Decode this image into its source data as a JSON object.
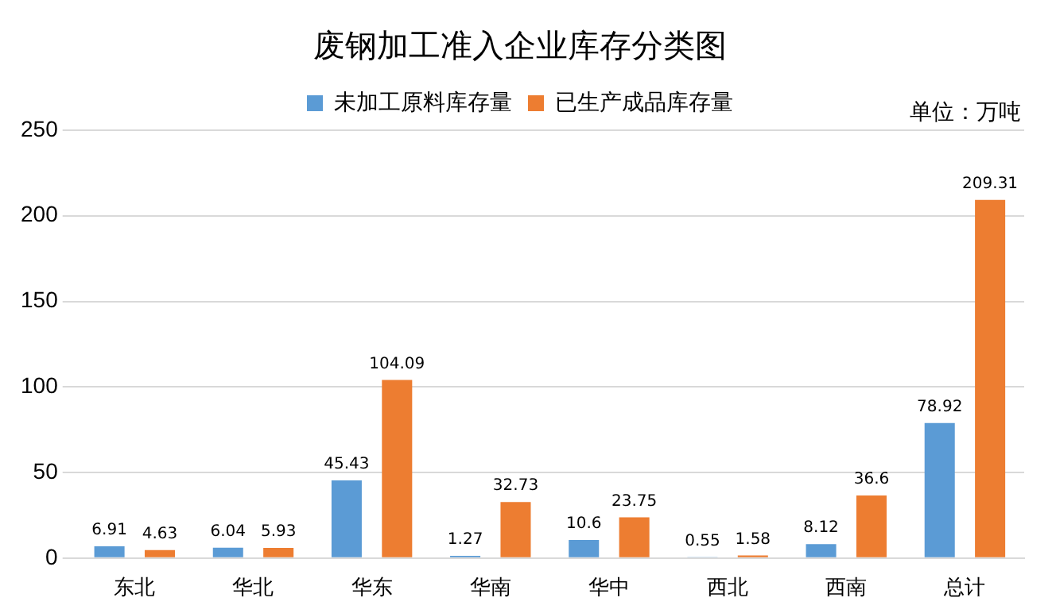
{
  "chart_data": {
    "type": "bar",
    "title": "废钢加工准入企业库存分类图",
    "categories": [
      "东北",
      "华北",
      "华东",
      "华南",
      "华中",
      "西北",
      "西南",
      "总计"
    ],
    "series": [
      {
        "name": "未加工原料库存量",
        "color": "#5b9bd5",
        "values": [
          6.91,
          6.04,
          45.43,
          1.27,
          10.6,
          0.55,
          8.12,
          78.92
        ]
      },
      {
        "name": "已生产成品库存量",
        "color": "#ed7d31",
        "values": [
          4.63,
          5.93,
          104.09,
          32.73,
          23.75,
          1.58,
          36.6,
          209.31
        ]
      }
    ],
    "ylim": [
      0,
      250
    ],
    "yticks": [
      0,
      50,
      100,
      150,
      200,
      250
    ],
    "grid": "y",
    "legend": "top",
    "data_labels": true,
    "annotations": [
      "单位：万吨"
    ]
  }
}
